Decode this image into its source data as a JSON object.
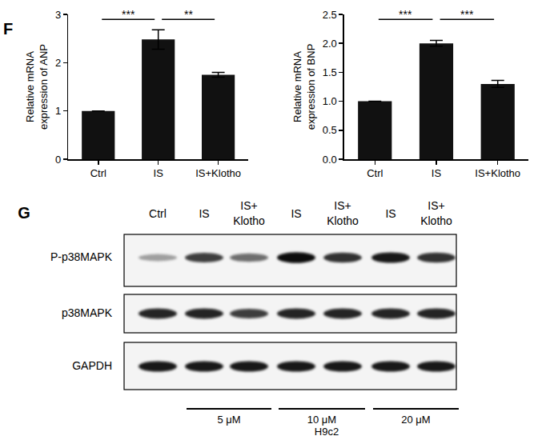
{
  "panel_labels": [
    "F",
    "G"
  ],
  "chart_data": [
    {
      "type": "bar",
      "categories": [
        "Ctrl",
        "IS",
        "IS+Klotho"
      ],
      "values": [
        1.0,
        2.48,
        1.75
      ],
      "errors": [
        0,
        0.2,
        0.05
      ],
      "color": "#111111",
      "y_label": [
        "Relative mRNA",
        "expression of ANP"
      ],
      "ylim": [
        0,
        3
      ],
      "yticks": [
        0,
        1,
        2,
        3
      ],
      "significance": [
        {
          "from": "Ctrl",
          "to": "IS",
          "label": "***"
        },
        {
          "from": "IS",
          "to": "IS+Klotho",
          "label": "**"
        }
      ]
    },
    {
      "type": "bar",
      "categories": [
        "Ctrl",
        "IS",
        "IS+Klotho"
      ],
      "values": [
        1.0,
        2.0,
        1.3
      ],
      "errors": [
        0,
        0.05,
        0.06
      ],
      "color": "#111111",
      "y_label": [
        "Relative mRNA",
        "expression of BNP"
      ],
      "ylim": [
        0,
        2.5
      ],
      "yticks": [
        {
          "value": 0,
          "label": "0.0"
        },
        0.5,
        {
          "value": 1,
          "label": "1.0"
        },
        1.5,
        {
          "value": 2,
          "label": "2.0"
        },
        2.5
      ],
      "significance": [
        {
          "from": "Ctrl",
          "to": "IS",
          "label": "***"
        },
        {
          "from": "IS",
          "to": "IS+Klotho",
          "label": "***"
        }
      ]
    }
  ],
  "blot": {
    "lanes": [
      [
        "Ctrl"
      ],
      [
        "IS"
      ],
      [
        "IS+",
        "Klotho"
      ],
      [
        "IS"
      ],
      [
        "IS+",
        "Klotho"
      ],
      [
        "IS"
      ],
      [
        "IS+",
        "Klotho"
      ]
    ],
    "rows": [
      {
        "label": "P-p38MAPK",
        "intensities": [
          0.35,
          0.75,
          0.55,
          0.95,
          0.8,
          0.9,
          0.8
        ]
      },
      {
        "label": "p38MAPK",
        "intensities": [
          0.85,
          0.85,
          0.75,
          0.85,
          0.85,
          0.85,
          0.85
        ]
      },
      {
        "label": "GAPDH",
        "intensities": [
          0.9,
          0.9,
          0.9,
          0.9,
          0.9,
          0.9,
          0.9
        ]
      }
    ],
    "conditions": [
      {
        "label": "5 μM",
        "lanes": [
          1,
          2
        ]
      },
      {
        "label": "10 μM",
        "lanes": [
          3,
          4
        ]
      },
      {
        "label": "20 μM",
        "lanes": [
          5,
          6
        ]
      }
    ],
    "cell_line": "H9c2"
  }
}
